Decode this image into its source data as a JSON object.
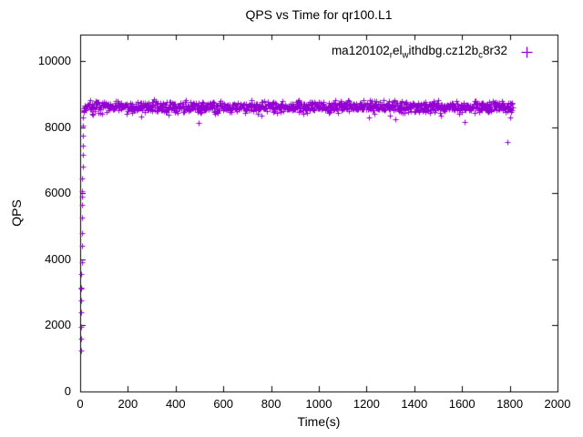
{
  "page": {
    "background": "#ffffff",
    "axis_color": "#000000"
  },
  "chart_data": {
    "type": "scatter",
    "title": "QPS vs Time for qr100.L1",
    "xlabel": "Time(s)",
    "ylabel": "QPS",
    "xlim": [
      0,
      2000
    ],
    "ylim": [
      0,
      10800
    ],
    "xticks": [
      0,
      200,
      400,
      600,
      800,
      1000,
      1200,
      1400,
      1600,
      1800,
      2000
    ],
    "yticks": [
      0,
      2000,
      4000,
      6000,
      8000,
      10000
    ],
    "grid": false,
    "legend": {
      "position": "top-right-inside",
      "label_plain": "ma120102_rel_withdbg.cz12b_c8r32",
      "label_parts": [
        {
          "t": "ma120102",
          "sub": false
        },
        {
          "t": "r",
          "sub": true
        },
        {
          "t": "el",
          "sub": false
        },
        {
          "t": "w",
          "sub": true
        },
        {
          "t": "ithdbg.cz12b",
          "sub": false
        },
        {
          "t": "c",
          "sub": true
        },
        {
          "t": "8r32",
          "sub": false
        }
      ],
      "marker": "plus"
    },
    "series": [
      {
        "name": "ma120102_rel_withdbg.cz12b_c8r32",
        "color": "#9400D3",
        "marker": "plus",
        "marker_half_size": 3,
        "ramp_points": [
          [
            2,
            1250
          ],
          [
            2,
            1600
          ],
          [
            3,
            1950
          ],
          [
            3,
            2400
          ],
          [
            4,
            2750
          ],
          [
            4,
            3150
          ],
          [
            5,
            3100
          ],
          [
            5,
            3550
          ],
          [
            6,
            3900
          ],
          [
            6,
            4400
          ],
          [
            7,
            4800
          ],
          [
            7,
            5250
          ],
          [
            8,
            5650
          ],
          [
            8,
            6050
          ],
          [
            9,
            5900
          ],
          [
            9,
            6450
          ],
          [
            10,
            6800
          ],
          [
            10,
            7150
          ],
          [
            11,
            7450
          ],
          [
            12,
            7750
          ],
          [
            12,
            8050
          ],
          [
            13,
            8300
          ],
          [
            14,
            8450
          ],
          [
            15,
            8520
          ],
          [
            16,
            8560
          ],
          [
            17,
            8480
          ],
          [
            18,
            8600
          ]
        ],
        "steady": {
          "t_start": 18,
          "t_end": 1812,
          "count": 1100,
          "mean": 8620,
          "std": 80,
          "dip_prob": 0.03,
          "dip_max": 260,
          "seed": 42
        },
        "outliers": [
          [
            55,
            8380
          ],
          [
            495,
            8120
          ],
          [
            760,
            8350
          ],
          [
            1210,
            8300
          ],
          [
            1320,
            8250
          ],
          [
            1510,
            8350
          ],
          [
            1610,
            8150
          ],
          [
            1790,
            7550
          ],
          [
            1800,
            8280
          ],
          [
            1805,
            8450
          ]
        ]
      }
    ]
  }
}
